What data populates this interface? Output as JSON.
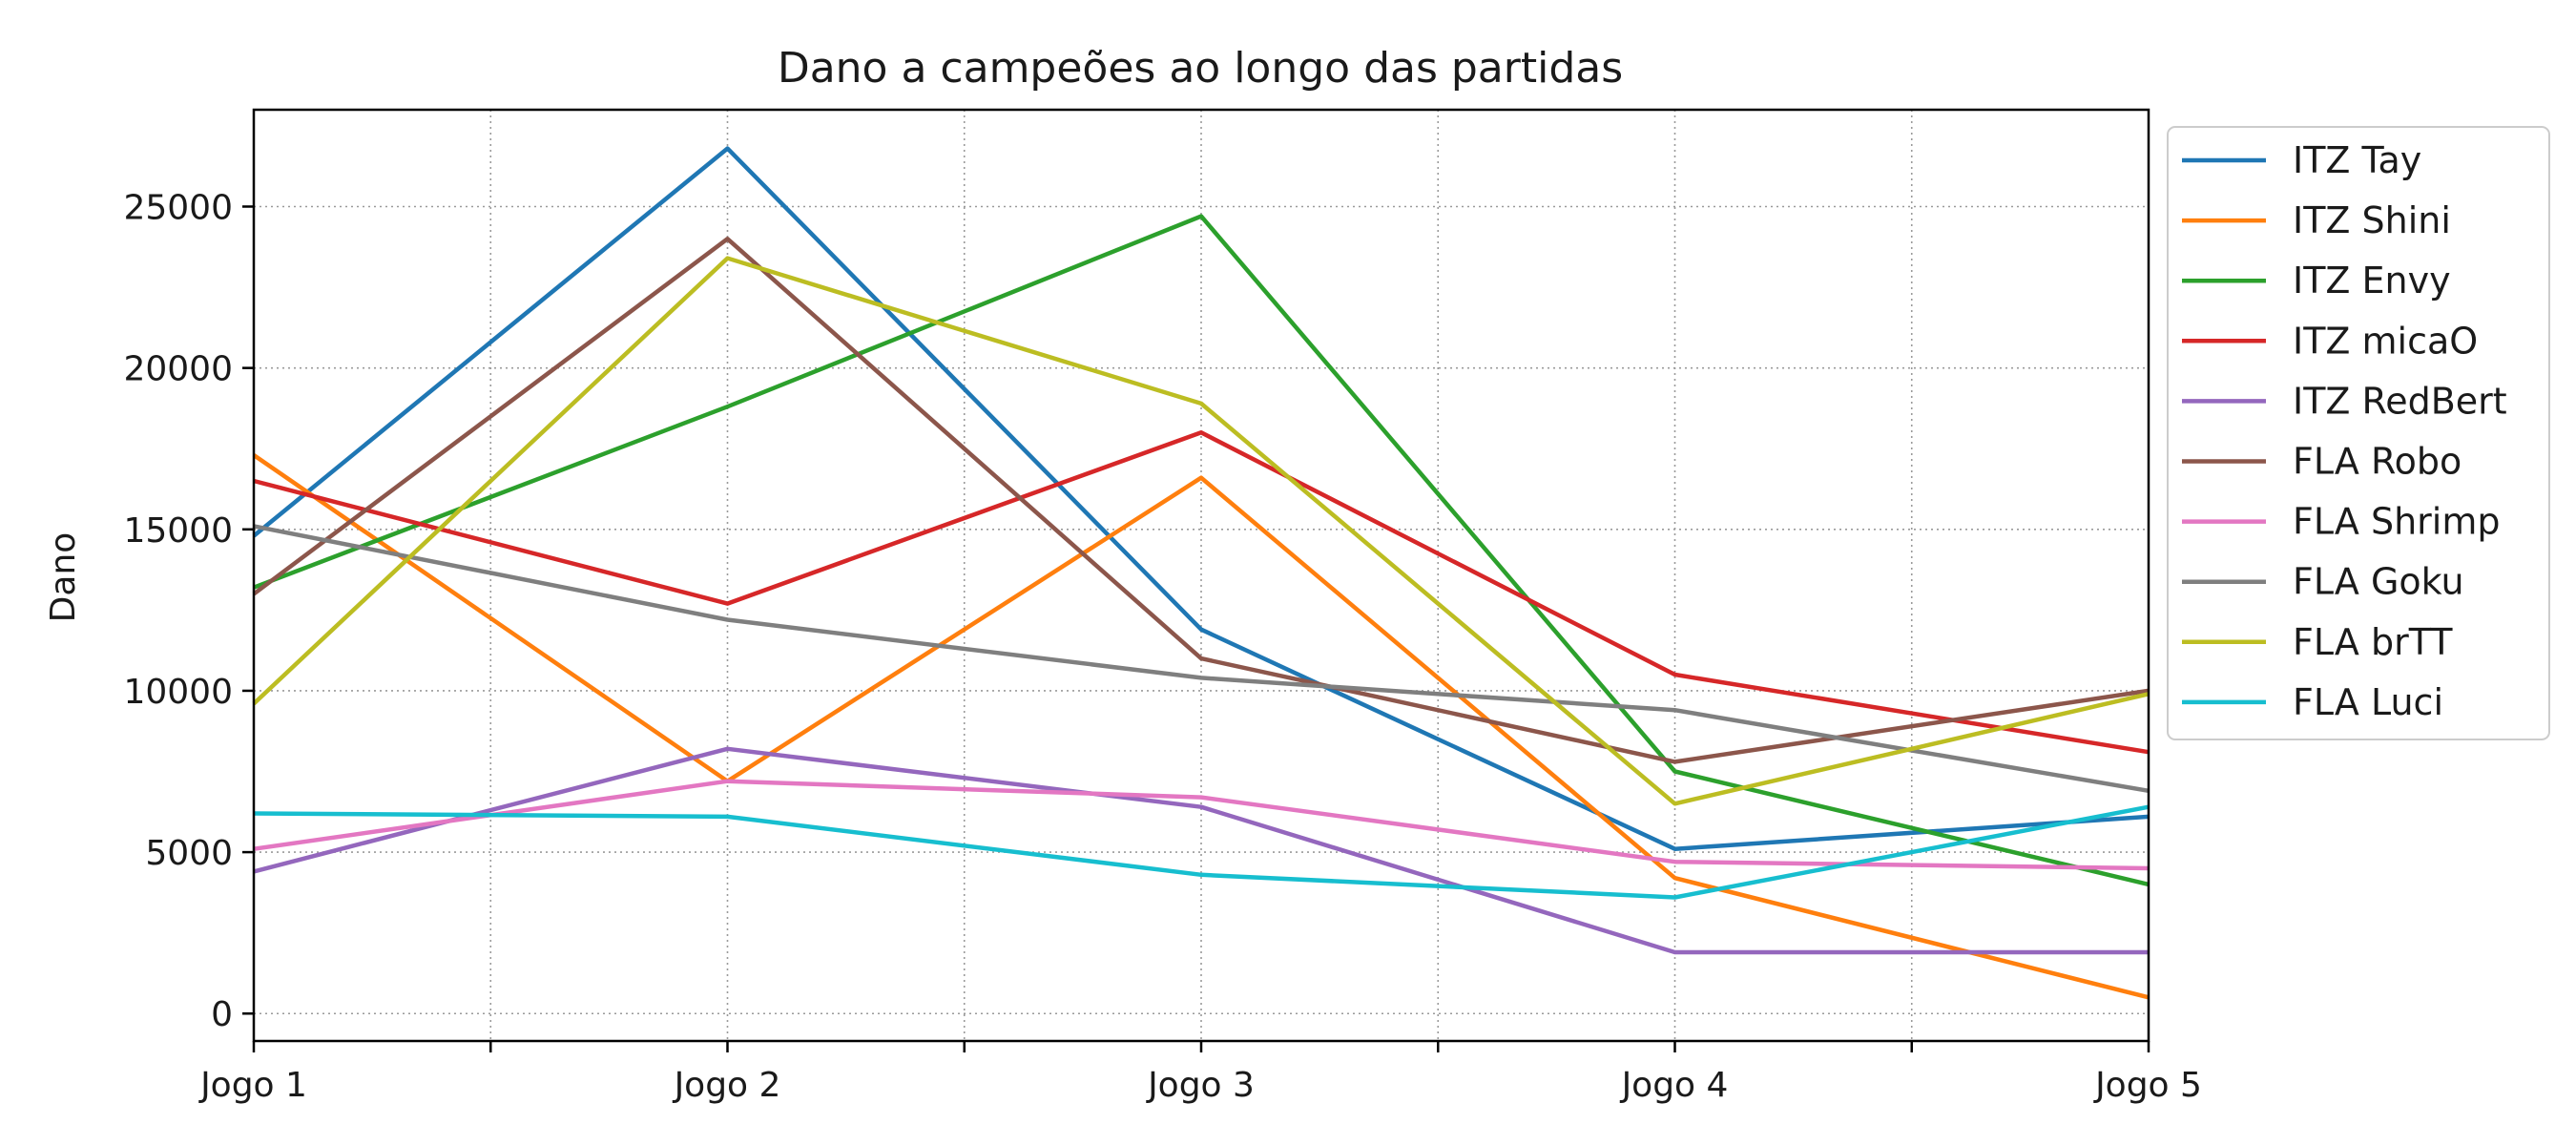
{
  "chart_data": {
    "type": "line",
    "title": "Dano a campeões ao longo das partidas",
    "xlabel": "",
    "ylabel": "Dano",
    "categories": [
      "Jogo 1",
      "Jogo 2",
      "Jogo 3",
      "Jogo 4",
      "Jogo 5"
    ],
    "x": [
      1,
      2,
      3,
      4,
      5
    ],
    "xlim": [
      1,
      5
    ],
    "ylim": [
      -850,
      28000
    ],
    "yticks": [
      0,
      5000,
      10000,
      15000,
      20000,
      25000
    ],
    "ytick_labels": [
      "0",
      "5000",
      "10000",
      "15000",
      "20000",
      "25000"
    ],
    "minor_xticks": [
      1.5,
      2.5,
      3.5,
      4.5
    ],
    "grid": true,
    "legend_position": "outside-right-top",
    "series": [
      {
        "name": "ITZ Tay",
        "color": "#1f77b4",
        "values": [
          14800,
          26800,
          11900,
          5100,
          6100
        ]
      },
      {
        "name": "ITZ Shini",
        "color": "#ff7f0e",
        "values": [
          17300,
          7200,
          16600,
          4200,
          500
        ]
      },
      {
        "name": "ITZ Envy",
        "color": "#2ca02c",
        "values": [
          13200,
          18800,
          24700,
          7500,
          4000
        ]
      },
      {
        "name": "ITZ micaO",
        "color": "#d62728",
        "values": [
          16500,
          12700,
          18000,
          10500,
          8100
        ]
      },
      {
        "name": "ITZ RedBert",
        "color": "#9467bd",
        "values": [
          4400,
          8200,
          6400,
          1900,
          1900
        ]
      },
      {
        "name": "FLA Robo",
        "color": "#8c564b",
        "values": [
          13000,
          24000,
          11000,
          7800,
          10000
        ]
      },
      {
        "name": "FLA Shrimp",
        "color": "#e377c2",
        "values": [
          5100,
          7200,
          6700,
          4700,
          4500
        ]
      },
      {
        "name": "FLA Goku",
        "color": "#7f7f7f",
        "values": [
          15100,
          12200,
          10400,
          9400,
          6900
        ]
      },
      {
        "name": "FLA brTT",
        "color": "#bcbd22",
        "values": [
          9600,
          23400,
          18900,
          6500,
          9900
        ]
      },
      {
        "name": "FLA Luci",
        "color": "#17becf",
        "values": [
          6200,
          6100,
          4300,
          3600,
          6400
        ]
      }
    ]
  }
}
